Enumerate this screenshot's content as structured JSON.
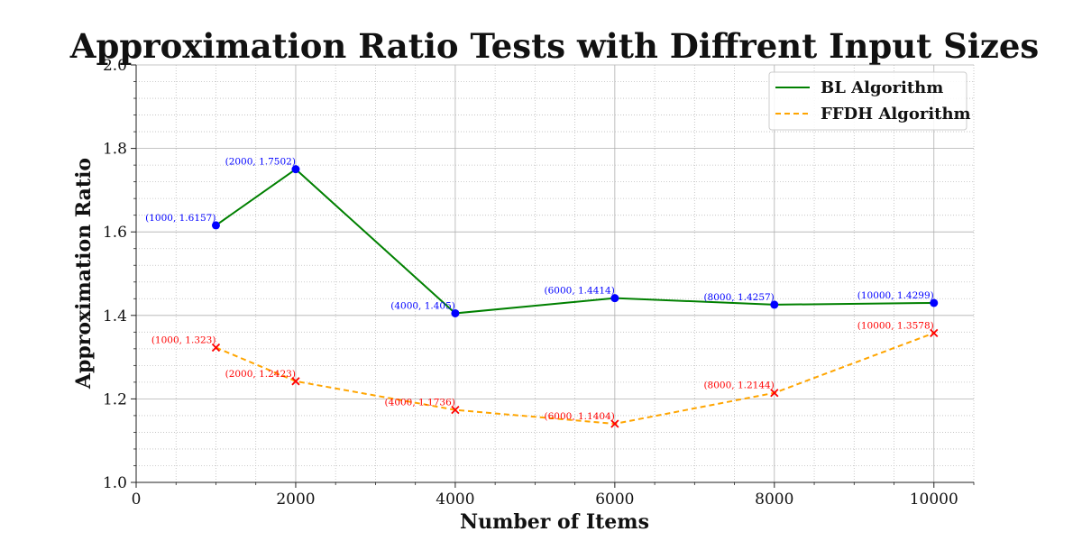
{
  "chart_data": {
    "type": "line",
    "title": "Approximation Ratio Tests with Diffrent Input Sizes",
    "xlabel": "Number of Items",
    "ylabel": "Approximation Ratio",
    "xlim": [
      0,
      10500
    ],
    "ylim": [
      1.0,
      2.0
    ],
    "x_ticks": [
      0,
      2000,
      4000,
      6000,
      8000,
      10000
    ],
    "x_tick_labels": [
      "0",
      "2000",
      "4000",
      "6000",
      "8000",
      "10000"
    ],
    "y_ticks": [
      1.0,
      1.2,
      1.4,
      1.6,
      1.8,
      2.0
    ],
    "y_tick_labels": [
      "1.0",
      "1.2",
      "1.4",
      "1.6",
      "1.8",
      "2.0"
    ],
    "grid": "major solid, minor dotted",
    "legend_position": "upper right",
    "x": [
      1000,
      2000,
      4000,
      6000,
      8000,
      10000
    ],
    "series": [
      {
        "name": "BL Algorithm",
        "values": [
          1.6157,
          1.7502,
          1.405,
          1.4414,
          1.4257,
          1.4299
        ],
        "point_labels": [
          "(1000, 1.6157)",
          "(2000, 1.7502)",
          "(4000, 1.405)",
          "(6000, 1.4414)",
          "(8000, 1.4257)",
          "(10000, 1.4299)"
        ],
        "color": "#008000",
        "marker_color": "#0000ff",
        "label_color": "#0000ff",
        "line_style": "solid",
        "marker": "circle"
      },
      {
        "name": "FFDH Algorithm",
        "values": [
          1.323,
          1.2423,
          1.1736,
          1.1404,
          1.2144,
          1.3578
        ],
        "point_labels": [
          "(1000, 1.323)",
          "(2000, 1.2423)",
          "(4000, 1.1736)",
          "(6000, 1.1404)",
          "(8000, 1.2144)",
          "(10000, 1.3578)"
        ],
        "color": "#ffa500",
        "marker_color": "#ff0000",
        "label_color": "#ff0000",
        "line_style": "dashed",
        "marker": "x"
      }
    ]
  }
}
